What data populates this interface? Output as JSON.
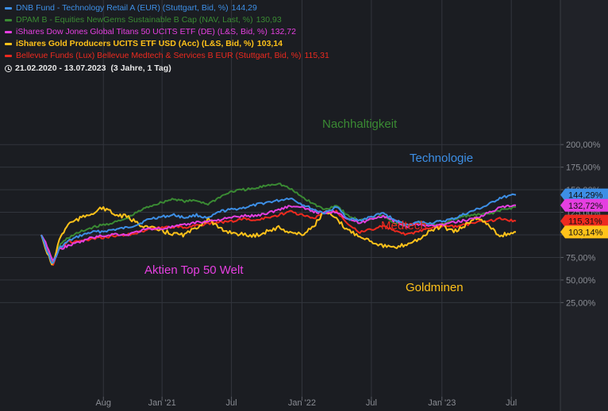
{
  "legend": [
    {
      "label": "DNB Fund - Technology Retail A (EUR) (Stuttgart, Bid, %)",
      "value": "144,29",
      "color": "#3d8fe6"
    },
    {
      "label": "DPAM B - Equities NewGems Sustainable B Cap (NAV, Last, %)",
      "value": "130,93",
      "color": "#3a8a33"
    },
    {
      "label": "iShares Dow Jones Global Titans 50 UCITS ETF (DE) (L&S, Bid, %)",
      "value": "132,72",
      "color": "#e53fe0"
    },
    {
      "label": "iShares Gold Producers UCITS ETF USD (Acc) (L&S, Bid, %)",
      "value": "103,14",
      "color": "#ffc21a"
    },
    {
      "label": "Bellevue Funds (Lux) Bellevue Medtech & Services B EUR (Stuttgart, Bid, %)",
      "value": "115,31",
      "color": "#ee2a1f"
    }
  ],
  "period": "21.02.2020 - 13.07.2023",
  "period_note": "(3 Jahre, 1 Tag)",
  "colors": {
    "background": "#1b1d22",
    "grid": "#32353d",
    "axis_text": "#8a8d94",
    "label_text": "#111111"
  },
  "chart_data": {
    "type": "line",
    "ylim": [
      25,
      200
    ],
    "y_ticks": [
      {
        "value": 25,
        "label": "25,00%"
      },
      {
        "value": 50,
        "label": "50,00%"
      },
      {
        "value": 75,
        "label": "75,00%"
      },
      {
        "value": 100,
        "label": "100,00%"
      },
      {
        "value": 125,
        "label": "125,00%"
      },
      {
        "value": 150,
        "label": "150,00%"
      },
      {
        "value": 175,
        "label": "175,00%"
      },
      {
        "value": 200,
        "label": "200,00%"
      }
    ],
    "x_range": [
      "2020-02-21",
      "2023-07-13"
    ],
    "x_ticks": [
      {
        "date": "2020-08-01",
        "label": "Aug"
      },
      {
        "date": "2021-01-01",
        "label": "Jan '21"
      },
      {
        "date": "2021-07-01",
        "label": "Jul"
      },
      {
        "date": "2022-01-01",
        "label": "Jan '22"
      },
      {
        "date": "2022-07-01",
        "label": "Jul"
      },
      {
        "date": "2023-01-01",
        "label": "Jan '23"
      },
      {
        "date": "2023-07-01",
        "label": "Jul"
      }
    ],
    "grid": true,
    "series": [
      {
        "name": "DNB Fund - Technology Retail A (EUR)",
        "color": "#3d8fe6",
        "last": 144.29,
        "last_label": "144,29%",
        "x": [
          "2020-02-21",
          "2020-03-03",
          "2020-03-16",
          "2020-03-23",
          "2020-04-08",
          "2020-05-01",
          "2020-06-01",
          "2020-07-01",
          "2020-08-01",
          "2020-09-01",
          "2020-10-01",
          "2020-11-01",
          "2020-12-01",
          "2021-01-01",
          "2021-02-01",
          "2021-03-01",
          "2021-04-01",
          "2021-05-01",
          "2021-06-01",
          "2021-07-01",
          "2021-08-01",
          "2021-09-01",
          "2021-10-01",
          "2021-11-01",
          "2021-12-01",
          "2022-01-01",
          "2022-02-01",
          "2022-03-01",
          "2022-04-01",
          "2022-05-01",
          "2022-06-01",
          "2022-07-01",
          "2022-08-01",
          "2022-09-01",
          "2022-10-01",
          "2022-11-01",
          "2022-12-01",
          "2023-01-01",
          "2023-02-01",
          "2023-03-01",
          "2023-04-01",
          "2023-05-01",
          "2023-06-01",
          "2023-07-13"
        ],
        "values": [
          100,
          88,
          72,
          68,
          85,
          93,
          99,
          103,
          104,
          106,
          108,
          112,
          118,
          120,
          122,
          119,
          122,
          118,
          126,
          128,
          130,
          133,
          136,
          138,
          141,
          134,
          128,
          124,
          131,
          118,
          116,
          120,
          124,
          116,
          111,
          114,
          113,
          115,
          118,
          123,
          128,
          133,
          141,
          144.29
        ]
      },
      {
        "name": "DPAM B - Equities NewGems Sustainable B Cap",
        "color": "#3a8a33",
        "last": 130.93,
        "last_label": "130,93%",
        "x": [
          "2020-02-21",
          "2020-03-03",
          "2020-03-16",
          "2020-03-23",
          "2020-04-08",
          "2020-05-01",
          "2020-06-01",
          "2020-07-01",
          "2020-08-01",
          "2020-09-01",
          "2020-10-01",
          "2020-11-01",
          "2020-12-01",
          "2021-01-01",
          "2021-02-01",
          "2021-03-01",
          "2021-04-01",
          "2021-05-01",
          "2021-06-01",
          "2021-07-01",
          "2021-08-01",
          "2021-09-01",
          "2021-10-01",
          "2021-11-01",
          "2021-12-01",
          "2022-01-01",
          "2022-02-01",
          "2022-03-01",
          "2022-04-01",
          "2022-05-01",
          "2022-06-01",
          "2022-07-01",
          "2022-08-01",
          "2022-09-01",
          "2022-10-01",
          "2022-11-01",
          "2022-12-01",
          "2023-01-01",
          "2023-02-01",
          "2023-03-01",
          "2023-04-01",
          "2023-05-01",
          "2023-06-01",
          "2023-07-13"
        ],
        "values": [
          100,
          90,
          75,
          70,
          88,
          97,
          103,
          108,
          111,
          114,
          118,
          126,
          132,
          136,
          140,
          137,
          138,
          134,
          142,
          148,
          150,
          151,
          155,
          157,
          151,
          142,
          134,
          128,
          133,
          121,
          116,
          118,
          122,
          113,
          110,
          114,
          111,
          112,
          117,
          121,
          122,
          123,
          127,
          130.93
        ]
      },
      {
        "name": "iShares Dow Jones Global Titans 50 UCITS ETF (DE)",
        "color": "#e53fe0",
        "last": 132.72,
        "last_label": "132,72%",
        "x": [
          "2020-02-21",
          "2020-03-03",
          "2020-03-16",
          "2020-03-23",
          "2020-04-08",
          "2020-05-01",
          "2020-06-01",
          "2020-07-01",
          "2020-08-01",
          "2020-09-01",
          "2020-10-01",
          "2020-11-01",
          "2020-12-01",
          "2021-01-01",
          "2021-02-01",
          "2021-03-01",
          "2021-04-01",
          "2021-05-01",
          "2021-06-01",
          "2021-07-01",
          "2021-08-01",
          "2021-09-01",
          "2021-10-01",
          "2021-11-01",
          "2021-12-01",
          "2022-01-01",
          "2022-02-01",
          "2022-03-01",
          "2022-04-01",
          "2022-05-01",
          "2022-06-01",
          "2022-07-01",
          "2022-08-01",
          "2022-09-01",
          "2022-10-01",
          "2022-11-01",
          "2022-12-01",
          "2023-01-01",
          "2023-02-01",
          "2023-03-01",
          "2023-04-01",
          "2023-05-01",
          "2023-06-01",
          "2023-07-13"
        ],
        "values": [
          100,
          92,
          78,
          70,
          84,
          88,
          92,
          97,
          99,
          101,
          100,
          104,
          107,
          107,
          109,
          111,
          114,
          115,
          117,
          119,
          121,
          121,
          124,
          128,
          132,
          130,
          126,
          124,
          126,
          118,
          113,
          118,
          121,
          115,
          109,
          112,
          110,
          111,
          114,
          116,
          119,
          124,
          130,
          132.72
        ]
      },
      {
        "name": "iShares Gold Producers UCITS ETF USD (Acc)",
        "color": "#ffc21a",
        "last": 103.14,
        "last_label": "103,14%",
        "x": [
          "2020-02-21",
          "2020-03-03",
          "2020-03-16",
          "2020-03-23",
          "2020-04-08",
          "2020-05-01",
          "2020-06-01",
          "2020-07-01",
          "2020-08-01",
          "2020-09-01",
          "2020-10-01",
          "2020-11-01",
          "2020-12-01",
          "2021-01-01",
          "2021-02-01",
          "2021-03-01",
          "2021-04-01",
          "2021-05-01",
          "2021-06-01",
          "2021-07-01",
          "2021-08-01",
          "2021-09-01",
          "2021-10-01",
          "2021-11-01",
          "2021-12-01",
          "2022-01-01",
          "2022-02-01",
          "2022-03-01",
          "2022-04-01",
          "2022-05-01",
          "2022-06-01",
          "2022-07-01",
          "2022-08-01",
          "2022-09-01",
          "2022-10-01",
          "2022-11-01",
          "2022-12-01",
          "2023-01-01",
          "2023-02-01",
          "2023-03-01",
          "2023-04-01",
          "2023-05-01",
          "2023-06-01",
          "2023-07-13"
        ],
        "values": [
          100,
          85,
          70,
          68,
          95,
          112,
          118,
          124,
          130,
          122,
          120,
          112,
          108,
          104,
          101,
          100,
          108,
          118,
          106,
          103,
          100,
          99,
          104,
          108,
          103,
          100,
          110,
          126,
          117,
          105,
          99,
          93,
          88,
          85,
          90,
          95,
          104,
          110,
          103,
          110,
          119,
          112,
          99,
          103.14
        ]
      },
      {
        "name": "Bellevue Funds (Lux) Bellevue Medtech & Services B EUR",
        "color": "#ee2a1f",
        "last": 115.31,
        "last_label": "115,31%",
        "x": [
          "2020-02-21",
          "2020-03-03",
          "2020-03-16",
          "2020-03-23",
          "2020-04-08",
          "2020-05-01",
          "2020-06-01",
          "2020-07-01",
          "2020-08-01",
          "2020-09-01",
          "2020-10-01",
          "2020-11-01",
          "2020-12-01",
          "2021-01-01",
          "2021-02-01",
          "2021-03-01",
          "2021-04-01",
          "2021-05-01",
          "2021-06-01",
          "2021-07-01",
          "2021-08-01",
          "2021-09-01",
          "2021-10-01",
          "2021-11-01",
          "2021-12-01",
          "2022-01-01",
          "2022-02-01",
          "2022-03-01",
          "2022-04-01",
          "2022-05-01",
          "2022-06-01",
          "2022-07-01",
          "2022-08-01",
          "2022-09-01",
          "2022-10-01",
          "2022-11-01",
          "2022-12-01",
          "2023-01-01",
          "2023-02-01",
          "2023-03-01",
          "2023-04-01",
          "2023-05-01",
          "2023-06-01",
          "2023-07-13"
        ],
        "values": [
          100,
          88,
          73,
          68,
          86,
          92,
          93,
          95,
          97,
          99,
          100,
          103,
          106,
          108,
          109,
          108,
          111,
          112,
          114,
          115,
          118,
          116,
          119,
          122,
          126,
          122,
          118,
          125,
          126,
          113,
          103,
          106,
          110,
          104,
          100,
          104,
          107,
          110,
          109,
          111,
          114,
          115,
          118,
          115.31
        ]
      }
    ],
    "annotations": [
      {
        "text": "Nachhaltigkeit",
        "color": "#3a8a33"
      },
      {
        "text": "Technologie",
        "color": "#3d8fe6"
      },
      {
        "text": "Medtech",
        "color": "#ee2a1f"
      },
      {
        "text": "Aktien Top 50 Welt",
        "color": "#e53fe0"
      },
      {
        "text": "Goldminen",
        "color": "#ffc21a"
      }
    ]
  }
}
